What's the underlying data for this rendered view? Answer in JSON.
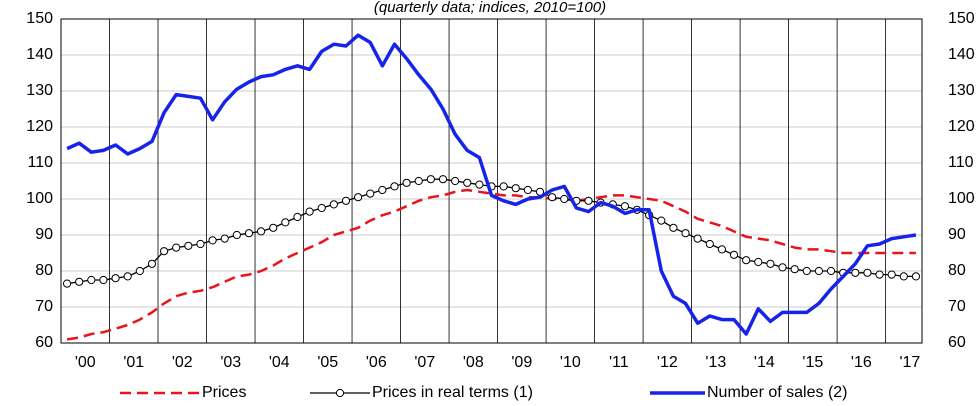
{
  "chart_data": {
    "type": "line",
    "subtitle": "(quarterly data; indices, 2010=100)",
    "categories": [
      null,
      "'00",
      null,
      null,
      null,
      "'01",
      null,
      null,
      null,
      "'02",
      null,
      null,
      null,
      "'03",
      null,
      null,
      null,
      "'04",
      null,
      null,
      null,
      "'05",
      null,
      null,
      null,
      "'06",
      null,
      null,
      null,
      "'07",
      null,
      null,
      null,
      "'08",
      null,
      null,
      null,
      "'09",
      null,
      null,
      null,
      "'10",
      null,
      null,
      null,
      "'11",
      null,
      null,
      null,
      "'12",
      null,
      null,
      null,
      "'13",
      null,
      null,
      null,
      "'14",
      null,
      null,
      null,
      "'15",
      null,
      null,
      null,
      "'16",
      null,
      null,
      null,
      "'17",
      null
    ],
    "ylim": [
      60,
      150
    ],
    "yticks": [
      60,
      70,
      80,
      90,
      100,
      110,
      120,
      130,
      140,
      150
    ],
    "grid": true,
    "legend": "bottom",
    "series": [
      {
        "name": "Prices",
        "color": "#e8141b",
        "style": "dashed",
        "values": [
          61,
          61.5,
          62.5,
          63,
          64,
          65,
          66.5,
          68.5,
          71,
          73,
          74,
          74.5,
          75.5,
          77,
          78.5,
          79,
          80,
          81.5,
          83.5,
          85,
          86.5,
          88,
          90,
          91,
          92,
          94,
          95.5,
          96.5,
          98,
          99.5,
          100.5,
          101,
          102,
          102.5,
          102,
          101.5,
          101,
          101,
          100.5,
          100.5,
          100,
          100,
          99.5,
          100,
          100.5,
          101,
          101,
          100.5,
          100,
          99.5,
          98,
          96.5,
          94.5,
          93.5,
          92.5,
          91,
          89.5,
          89,
          88.5,
          87.5,
          86.5,
          86,
          86,
          85.5,
          85,
          85,
          85,
          85,
          85,
          85,
          85
        ]
      },
      {
        "name": "Prices in real terms (1)",
        "color": "#000000",
        "style": "markers",
        "values": [
          76.5,
          77,
          77.5,
          77.5,
          78,
          78.5,
          80,
          82,
          85.5,
          86.5,
          87,
          87.5,
          88.5,
          89,
          90,
          90.5,
          91,
          92,
          93.5,
          95,
          96.5,
          97.5,
          98.5,
          99.5,
          100.5,
          101.5,
          102.5,
          103.5,
          104.5,
          105,
          105.5,
          105.5,
          105,
          104.5,
          104,
          103.5,
          103.5,
          103,
          102.5,
          102,
          100.5,
          100,
          99.5,
          99.5,
          99,
          98.5,
          98,
          97,
          95.5,
          94,
          92,
          90.5,
          89,
          87.5,
          86,
          84.5,
          83,
          82.5,
          82,
          81,
          80.5,
          80,
          80,
          80,
          79.5,
          79.5,
          79.5,
          79,
          79,
          78.5,
          78.5
        ]
      },
      {
        "name": "Number of sales (2)",
        "color": "#1624ea",
        "style": "solid",
        "values": [
          114,
          115.5,
          113,
          113.5,
          115,
          112.5,
          114,
          116,
          124,
          129,
          128.5,
          128,
          122,
          127,
          130.5,
          132.5,
          134,
          134.5,
          136,
          137,
          136,
          141,
          143,
          142.5,
          145.5,
          143.5,
          137,
          143,
          139,
          134.5,
          130.5,
          125,
          118,
          113.5,
          111.5,
          101,
          99.5,
          98.5,
          100,
          100.5,
          102.5,
          103.5,
          97.5,
          96.5,
          99,
          98,
          96,
          97,
          97,
          80,
          73,
          71,
          65.5,
          67.5,
          66.5,
          66.5,
          62.5,
          69.5,
          66,
          68.5,
          68.5,
          68.5,
          71,
          75,
          78.5,
          82,
          87,
          87.5,
          89,
          89.5,
          90
        ]
      }
    ]
  }
}
